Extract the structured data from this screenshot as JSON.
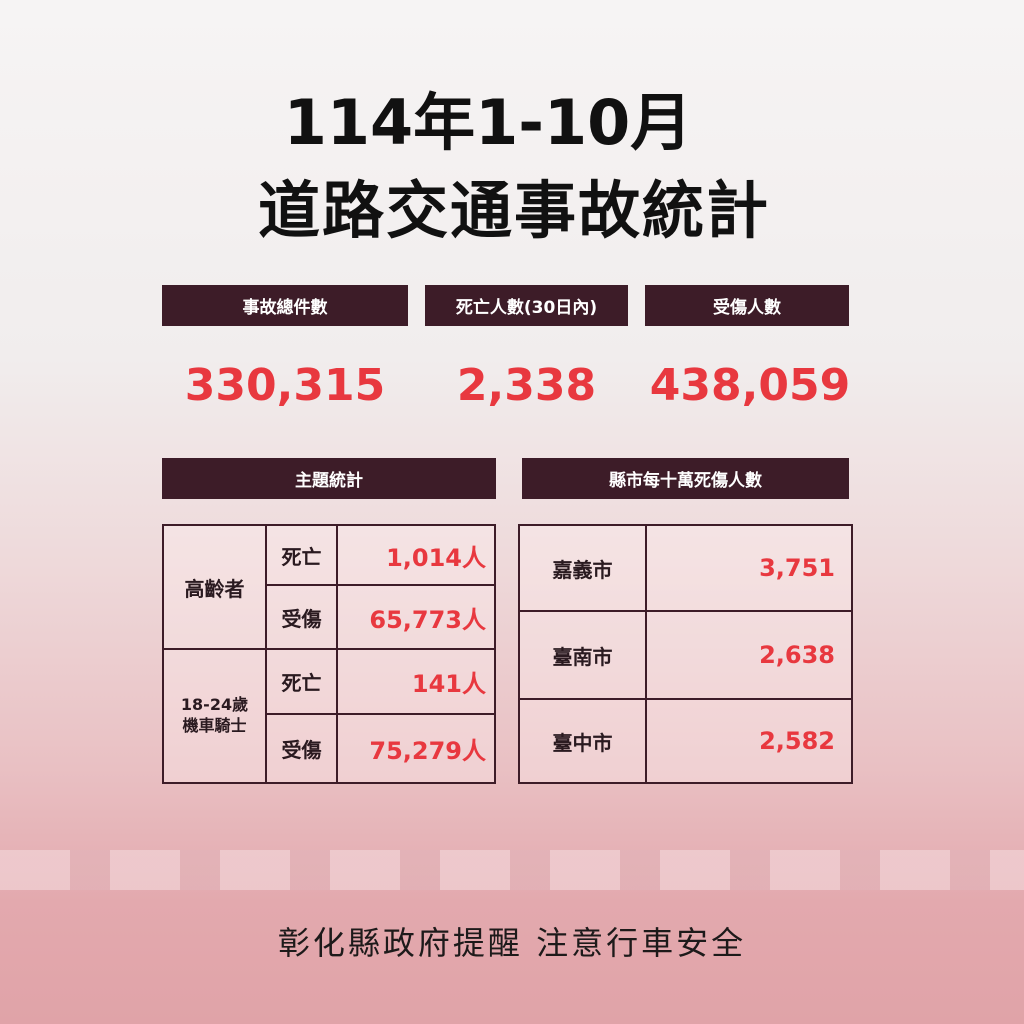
{
  "title": {
    "line1": "114年1-10月",
    "line2": "道路交通事故統計"
  },
  "summary": [
    {
      "label": "事故總件數",
      "value": "330,315"
    },
    {
      "label": "死亡人數(30日內)",
      "value": "2,338"
    },
    {
      "label": "受傷人數",
      "value": "438,059"
    }
  ],
  "topic": {
    "header": "主題統計",
    "groups": [
      {
        "name": "高齡者",
        "rows": [
          {
            "type": "死亡",
            "value": "1,014人"
          },
          {
            "type": "受傷",
            "value": "65,773人"
          }
        ]
      },
      {
        "name": "18-24歲\n機車騎士",
        "rows": [
          {
            "type": "死亡",
            "value": "141人"
          },
          {
            "type": "受傷",
            "value": "75,279人"
          }
        ]
      }
    ]
  },
  "county": {
    "header": "縣市每十萬死傷人數",
    "rows": [
      {
        "city": "嘉義市",
        "value": "3,751"
      },
      {
        "city": "臺南市",
        "value": "2,638"
      },
      {
        "city": "臺中市",
        "value": "2,582"
      }
    ]
  },
  "footer": "彰化縣政府提醒 注意行車安全",
  "colors": {
    "header_bg": "#3d1c28",
    "accent": "#e8383f"
  }
}
